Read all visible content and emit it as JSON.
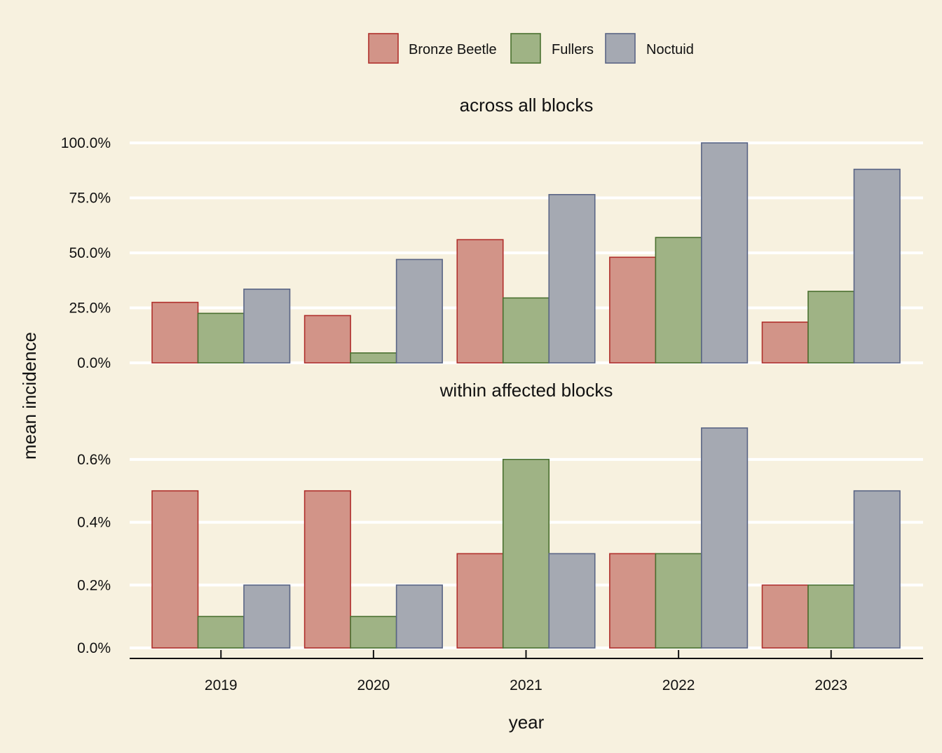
{
  "chart_data": {
    "type": "bar",
    "categories": [
      "2019",
      "2020",
      "2021",
      "2022",
      "2023"
    ],
    "xlabel": "year",
    "ylabel": "mean incidence",
    "legend": {
      "placement": "top"
    },
    "series_styles": [
      {
        "name": "Bronze Beetle",
        "fill": "#d29488",
        "stroke": "#b0302c"
      },
      {
        "name": "Fullers",
        "fill": "#9fb385",
        "stroke": "#4a7030"
      },
      {
        "name": "Noctuid",
        "fill": "#a5a9b2",
        "stroke": "#5a6585"
      }
    ],
    "panels": [
      {
        "title": "across all blocks",
        "ylim": [
          0,
          100
        ],
        "ticks": [
          "0.0%",
          "25.0%",
          "50.0%",
          "75.0%",
          "100.0%"
        ],
        "series": [
          {
            "name": "Bronze Beetle",
            "values": [
              27.5,
              21.5,
              56,
              48,
              18.5
            ]
          },
          {
            "name": "Fullers",
            "values": [
              22.5,
              4.5,
              29.5,
              57,
              32.5
            ]
          },
          {
            "name": "Noctuid",
            "values": [
              33.5,
              47,
              76.5,
              100,
              88
            ]
          }
        ]
      },
      {
        "title": "within affected blocks",
        "ylim": [
          0,
          0.7
        ],
        "ticks": [
          "0.0%",
          "0.2%",
          "0.4%",
          "0.6%"
        ],
        "series": [
          {
            "name": "Bronze Beetle",
            "values": [
              0.5,
              0.5,
              0.3,
              0.3,
              0.2
            ]
          },
          {
            "name": "Fullers",
            "values": [
              0.1,
              0.1,
              0.6,
              0.3,
              0.2
            ]
          },
          {
            "name": "Noctuid",
            "values": [
              0.2,
              0.2,
              0.3,
              0.7,
              0.5
            ]
          }
        ]
      }
    ]
  }
}
